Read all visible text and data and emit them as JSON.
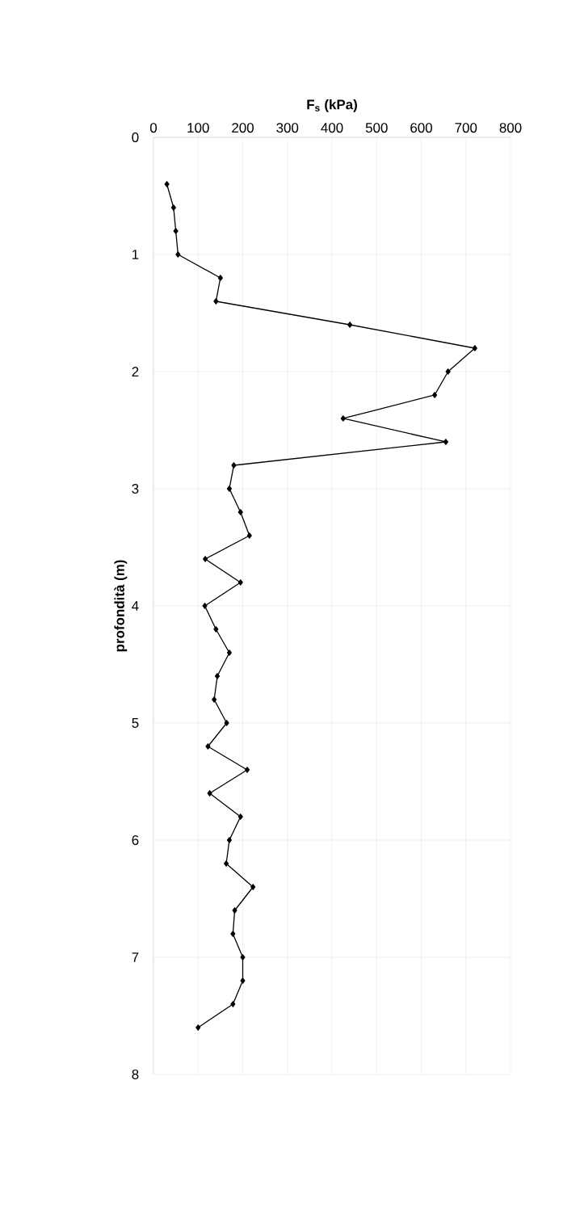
{
  "chart_data": {
    "type": "line",
    "xlabel": "F$_{s}$ (kPa)",
    "ylabel": "profondità (m)",
    "series": [
      {
        "color": "#000000",
        "x": [
          30,
          45,
          50,
          55,
          150,
          140,
          440,
          720,
          660,
          630,
          425,
          655,
          180,
          170,
          195,
          215,
          116,
          195,
          115,
          140,
          170,
          143,
          136,
          164,
          122,
          210,
          126,
          195,
          170,
          163,
          223,
          182,
          178,
          200,
          200,
          178,
          100
        ],
        "values": [
          0.4,
          0.6,
          0.8,
          1.0,
          1.2,
          1.4,
          1.6,
          1.8,
          2.0,
          2.2,
          2.4,
          2.6,
          2.8,
          3.0,
          3.2,
          3.4,
          3.6,
          3.8,
          4.0,
          4.2,
          4.4,
          4.6,
          4.8,
          5.0,
          5.2,
          5.4,
          5.6,
          5.8,
          6.0,
          6.2,
          6.4,
          6.6,
          6.8,
          7.0,
          7.2,
          7.4,
          7.6
        ]
      }
    ],
    "xlim": [
      0,
      800
    ],
    "xticks": [
      0,
      100,
      200,
      300,
      400,
      500,
      600,
      700,
      800
    ],
    "ylim": [
      8,
      0
    ],
    "yticks": [
      0,
      1,
      2,
      3,
      4,
      5,
      6,
      7,
      8
    ],
    "grid": true,
    "marker": "diamond",
    "line_style": "solid"
  }
}
